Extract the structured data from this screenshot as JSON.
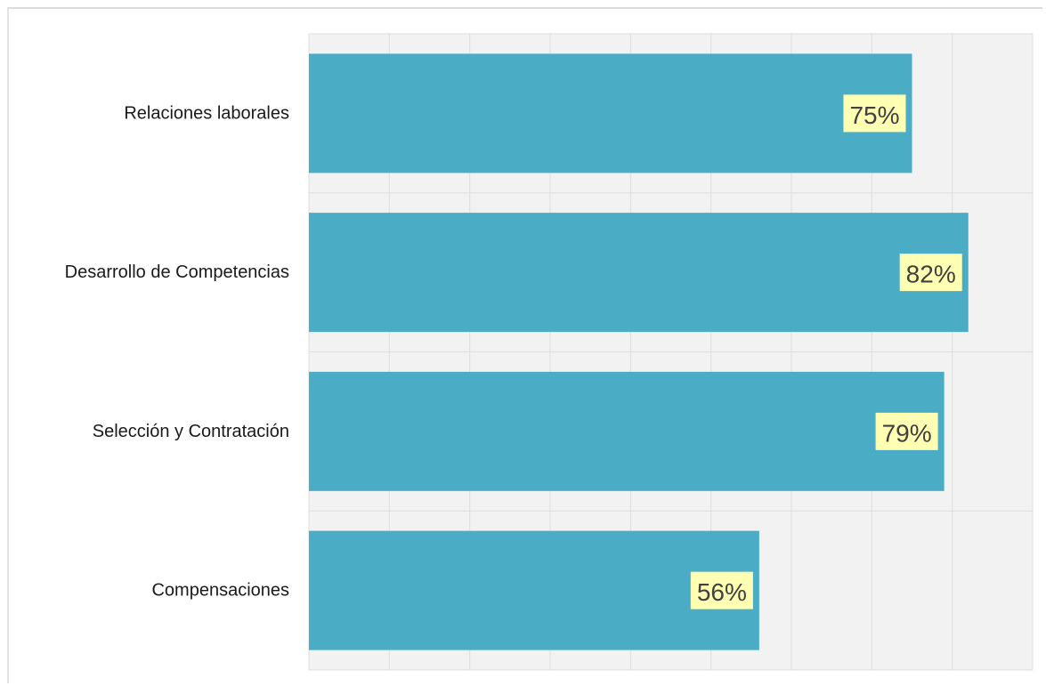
{
  "chart_data": {
    "type": "bar",
    "orientation": "horizontal",
    "categories": [
      "Relaciones laborales",
      "Desarrollo de Competencias",
      "Selección y Contratación",
      "Compensaciones"
    ],
    "values": [
      75,
      82,
      79,
      56
    ],
    "data_labels": [
      "75%",
      "82%",
      "79%",
      "56%"
    ],
    "xlim": [
      0,
      90
    ],
    "x_tick_step": 10,
    "grid": true,
    "legend": "none",
    "colors": {
      "bar": "#4bacc6",
      "plot_background": "#f2f2f2",
      "grid_line": "#dedede",
      "data_label_background": "#ffffb3",
      "data_label_text": "#404040",
      "category_text": "#1a1a1a"
    }
  }
}
